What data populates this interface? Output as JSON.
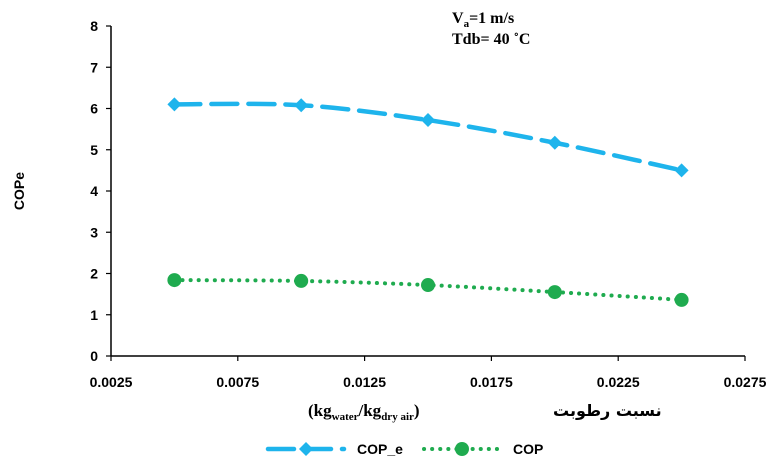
{
  "chart_data": {
    "type": "line",
    "x": [
      0.005,
      0.01,
      0.015,
      0.02,
      0.025
    ],
    "series": [
      {
        "name": "COP_e",
        "values": [
          6.1,
          6.08,
          5.72,
          5.17,
          4.5
        ],
        "color": "#1eb4ec",
        "line": "dashed",
        "marker": "diamond"
      },
      {
        "name": "COP",
        "values": [
          1.84,
          1.82,
          1.72,
          1.55,
          1.36
        ],
        "color": "#1fab4f",
        "line": "dotted",
        "marker": "circle"
      }
    ],
    "xlim": [
      0.0025,
      0.0275
    ],
    "ylim": [
      0,
      8
    ],
    "xticks": [
      "0.0025",
      "0.0075",
      "0.0125",
      "0.0175",
      "0.0225",
      "0.0275"
    ],
    "yticks": [
      "0",
      "1",
      "2",
      "3",
      "4",
      "5",
      "6",
      "7",
      "8"
    ],
    "ylabel": "COPe",
    "xlabel": {
      "arabic": "نسبت رطوبت",
      "open": "(kg",
      "sub1": "water",
      "mid": "/kg",
      "sub2": "dry air",
      "close": ")"
    },
    "annotation": {
      "line1_main": "V",
      "line1_sub": "a",
      "line1_rest": "=1 m/s",
      "line2": "Tdb= 40 ˚C"
    },
    "grid": false,
    "legend_position": "bottom"
  }
}
